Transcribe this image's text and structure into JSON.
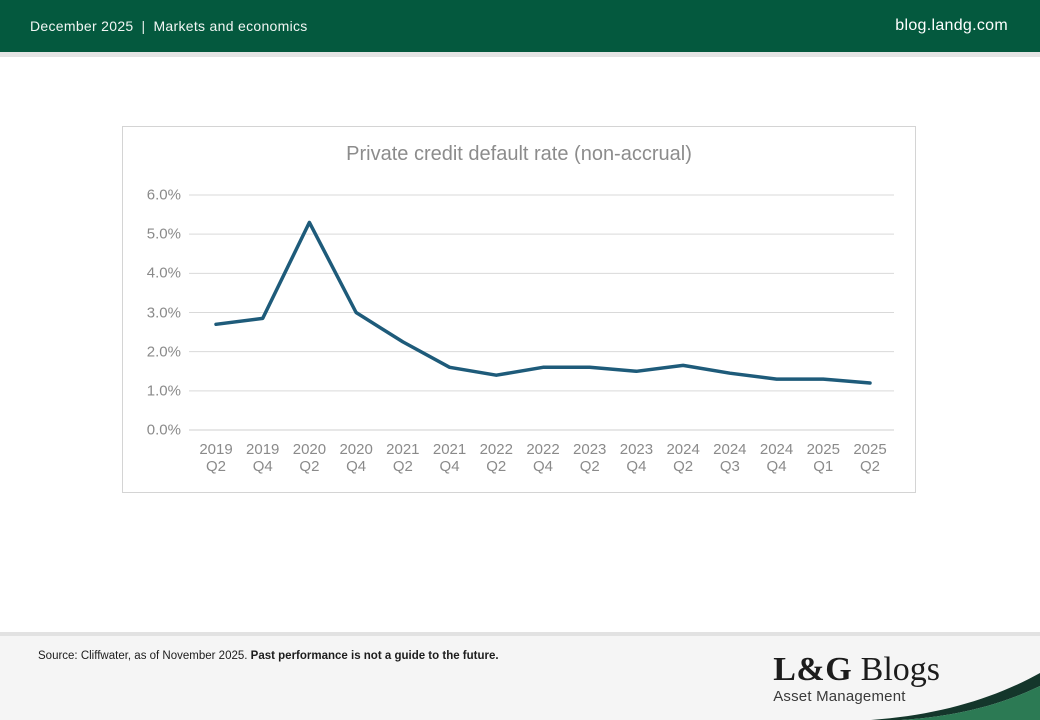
{
  "header": {
    "date": "December 2025",
    "separator": "|",
    "section": "Markets and economics",
    "site": "blog.landg.com",
    "bg_color": "#04593E"
  },
  "chart_data": {
    "type": "line",
    "title": "Private credit default rate (non-accrual)",
    "categories": [
      "2019 Q2",
      "2019 Q4",
      "2020 Q2",
      "2020 Q4",
      "2021 Q2",
      "2021 Q4",
      "2022 Q2",
      "2022 Q4",
      "2023 Q2",
      "2023 Q4",
      "2024 Q2",
      "2024 Q3",
      "2024 Q4",
      "2025 Q1",
      "2025 Q2"
    ],
    "values": [
      2.7,
      2.85,
      5.3,
      3.0,
      2.25,
      1.6,
      1.4,
      1.6,
      1.6,
      1.5,
      1.65,
      1.45,
      1.3,
      1.3,
      1.2
    ],
    "y_tick_labels": [
      "6.0%",
      "5.0%",
      "4.0%",
      "3.0%",
      "2.0%",
      "1.0%",
      "0.0%"
    ],
    "ylim": [
      0,
      6
    ],
    "xlabel": "",
    "ylabel": "",
    "grid": true,
    "legend": "none",
    "line_color": "#1E5B7A",
    "grid_color": "#d9d9d9",
    "axis_color": "#cfcfcf"
  },
  "footer": {
    "source_text": "Source: Cliffwater, as of November 2025. ",
    "disclaimer_bold": "Past performance is not a guide to the future.",
    "logo_main": "L&G",
    "logo_rest": " Blogs",
    "logo_subtitle": "Asset Management",
    "wedge_dark_color": "#14362B",
    "wedge_green_color": "#2C7A54"
  }
}
